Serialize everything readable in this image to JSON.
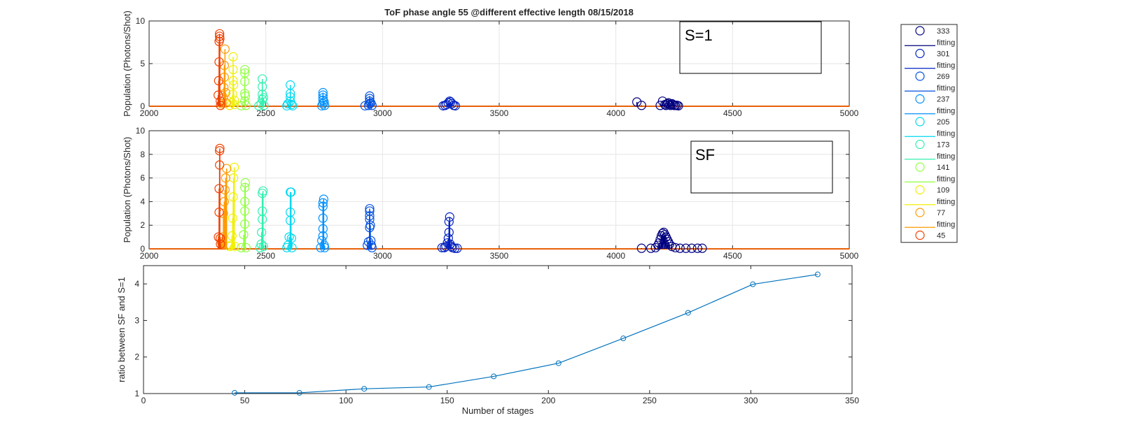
{
  "title": "ToF phase angle 55 @different effective length      08/15/2018",
  "chart_data": [
    {
      "type": "scatter",
      "style": "stem",
      "ylabel": "Population (Photons/Shot)",
      "xlim": [
        2000,
        5000
      ],
      "ylim": [
        0,
        10
      ],
      "xticks": [
        2000,
        2500,
        3000,
        3500,
        4000,
        4500,
        5000
      ],
      "yticks": [
        0,
        5,
        10
      ],
      "annotation": "S=1",
      "grid": true,
      "series": [
        {
          "name": "333",
          "color": "#00007f",
          "x": [
            4090,
            4110,
            4190,
            4200,
            4210,
            4215,
            4220,
            4225,
            4230,
            4235,
            4240,
            4245,
            4250,
            4255,
            4262,
            4268
          ],
          "y": [
            0.5,
            0.1,
            0.1,
            0.6,
            0.2,
            0.1,
            0.3,
            0.4,
            0.2,
            0.1,
            0.3,
            0.2,
            0.1,
            0.1,
            0.1,
            0.05
          ]
        },
        {
          "name": "301",
          "color": "#0020c0",
          "x": [
            3260,
            3268,
            3275,
            3282,
            3288,
            3292,
            3298,
            3305,
            3312
          ],
          "y": [
            0.05,
            0.1,
            0.2,
            0.4,
            0.6,
            0.5,
            0.3,
            0.1,
            0.05
          ]
        },
        {
          "name": "269",
          "color": "#0050e0",
          "x": [
            2925,
            2940,
            2945,
            2945,
            2945,
            2945,
            2950,
            2955
          ],
          "y": [
            0.05,
            0.1,
            0.3,
            0.6,
            0.9,
            1.2,
            0.4,
            0.1
          ]
        },
        {
          "name": "237",
          "color": "#0090ff",
          "x": [
            2740,
            2745,
            2745,
            2745,
            2745,
            2745,
            2750,
            2752
          ],
          "y": [
            0.05,
            0.3,
            0.7,
            1.0,
            1.3,
            1.6,
            0.5,
            0.1
          ]
        },
        {
          "name": "205",
          "color": "#00d8f0",
          "x": [
            2590,
            2595,
            2605,
            2605,
            2605,
            2605,
            2610,
            2615
          ],
          "y": [
            0.05,
            0.3,
            0.6,
            1.1,
            1.5,
            2.5,
            0.2,
            0.05
          ]
        },
        {
          "name": "173",
          "color": "#30f0b0",
          "x": [
            2470,
            2480,
            2485,
            2485,
            2485,
            2485,
            2490,
            2492
          ],
          "y": [
            0.05,
            0.3,
            0.8,
            1.4,
            2.3,
            3.2,
            1.0,
            0.1
          ]
        },
        {
          "name": "141",
          "color": "#90ff40",
          "x": [
            2395,
            2410,
            2410,
            2410,
            2410,
            2410,
            2412,
            2415
          ],
          "y": [
            0.05,
            0.6,
            1.5,
            2.9,
            3.9,
            4.3,
            1.2,
            0.1
          ]
        },
        {
          "name": "109",
          "color": "#f0f000",
          "x": [
            2345,
            2355,
            2358,
            2360,
            2360,
            2360,
            2362,
            2365,
            2365
          ],
          "y": [
            0.1,
            0.4,
            1.4,
            3.0,
            4.3,
            5.8,
            2.5,
            0.7,
            0.2
          ]
        },
        {
          "name": "77",
          "color": "#ff9a00",
          "x": [
            2310,
            2318,
            2320,
            2322,
            2322,
            2325,
            2328,
            2330
          ],
          "y": [
            0.3,
            1.0,
            2.2,
            3.4,
            4.8,
            6.7,
            1.6,
            0.4
          ]
        },
        {
          "name": "45",
          "color": "#f04000",
          "x": [
            2296,
            2298,
            2300,
            2300,
            2302,
            2302,
            2303,
            2305,
            2306
          ],
          "y": [
            1.3,
            3.0,
            5.2,
            7.6,
            8.2,
            8.5,
            7.9,
            0.6,
            0.1
          ]
        }
      ]
    },
    {
      "type": "scatter",
      "style": "stem",
      "ylabel": "Population (Photons/Shot)",
      "xlim": [
        2000,
        5000
      ],
      "ylim": [
        0,
        10
      ],
      "xticks": [
        2000,
        2500,
        3000,
        3500,
        4000,
        4500,
        5000
      ],
      "yticks": [
        0,
        2,
        4,
        6,
        8,
        10
      ],
      "annotation": "SF",
      "grid": true,
      "series": [
        {
          "name": "333",
          "color": "#00007f",
          "x": [
            4110,
            4150,
            4170,
            4180,
            4185,
            4190,
            4195,
            4200,
            4205,
            4210,
            4215,
            4220,
            4225,
            4230,
            4240,
            4255,
            4275,
            4300,
            4325,
            4350,
            4370
          ],
          "y": [
            0.05,
            0.05,
            0.1,
            0.3,
            0.5,
            0.8,
            1.1,
            1.3,
            1.4,
            1.2,
            1.0,
            0.8,
            0.6,
            0.4,
            0.2,
            0.1,
            0.05,
            0.05,
            0.05,
            0.05,
            0.05
          ]
        },
        {
          "name": "301",
          "color": "#0020c0",
          "x": [
            3255,
            3265,
            3272,
            3278,
            3282,
            3285,
            3285,
            3288,
            3290,
            3295,
            3300,
            3310,
            3320
          ],
          "y": [
            0.1,
            0.1,
            0.2,
            0.5,
            0.9,
            1.4,
            2.3,
            2.7,
            0.4,
            0.2,
            0.1,
            0.05,
            0.05
          ]
        },
        {
          "name": "269",
          "color": "#0050e0",
          "x": [
            2935,
            2940,
            2945,
            2945,
            2945,
            2945,
            2945,
            2948,
            2950,
            2952,
            2955
          ],
          "y": [
            0.3,
            0.6,
            1.8,
            2.5,
            2.8,
            3.2,
            3.4,
            2.0,
            0.7,
            0.3,
            0.1
          ]
        },
        {
          "name": "237",
          "color": "#0090ff",
          "x": [
            2735,
            2740,
            2745,
            2745,
            2745,
            2745,
            2745,
            2748,
            2750,
            2752
          ],
          "y": [
            0.1,
            0.7,
            1.1,
            1.7,
            2.6,
            3.6,
            3.9,
            4.2,
            0.3,
            0.1
          ]
        },
        {
          "name": "205",
          "color": "#00d8f0",
          "x": [
            2590,
            2595,
            2600,
            2605,
            2605,
            2605,
            2608,
            2610,
            2612
          ],
          "y": [
            0.1,
            0.3,
            1.0,
            2.4,
            3.1,
            4.8,
            4.8,
            0.9,
            0.1
          ]
        },
        {
          "name": "173",
          "color": "#30f0b0",
          "x": [
            2475,
            2480,
            2482,
            2485,
            2485,
            2485,
            2488,
            2490
          ],
          "y": [
            0.1,
            0.4,
            1.4,
            2.5,
            3.2,
            4.7,
            4.9,
            0.2
          ]
        },
        {
          "name": "141",
          "color": "#90ff40",
          "x": [
            2395,
            2405,
            2410,
            2410,
            2410,
            2410,
            2412,
            2415
          ],
          "y": [
            0.1,
            1.2,
            2.1,
            3.2,
            4.0,
            5.2,
            5.6,
            0.1
          ]
        },
        {
          "name": "109",
          "color": "#f0f000",
          "x": [
            2345,
            2350,
            2355,
            2358,
            2360,
            2362,
            2365,
            2368
          ],
          "y": [
            0.2,
            0.3,
            1.1,
            2.6,
            4.4,
            6.0,
            6.9,
            0.2
          ]
        },
        {
          "name": "77",
          "color": "#ff9a00",
          "x": [
            2310,
            2315,
            2318,
            2322,
            2325,
            2328,
            2332
          ],
          "y": [
            0.6,
            1.0,
            3.0,
            4.0,
            5.0,
            6.0,
            6.8
          ]
        },
        {
          "name": "45",
          "color": "#f04000",
          "x": [
            2297,
            2300,
            2300,
            2302,
            2302,
            2303,
            2305,
            2306
          ],
          "y": [
            1.0,
            3.1,
            5.1,
            7.1,
            8.3,
            8.5,
            0.9,
            0.4
          ]
        }
      ],
      "legend": {
        "placement": "outside-right",
        "entries": [
          "333",
          "fitting",
          "301",
          "fitting",
          "269",
          "fitting",
          "237",
          "fitting",
          "205",
          "fitting",
          "173",
          "fitting",
          "141",
          "fitting",
          "109",
          "fitting",
          "77",
          "fitting",
          "45"
        ]
      }
    },
    {
      "type": "line",
      "xlabel": "Number of stages",
      "ylabel": "ratio between SF and S=1",
      "xlim": [
        0,
        350
      ],
      "ylim": [
        1,
        4.5
      ],
      "xticks": [
        0,
        50,
        100,
        150,
        200,
        250,
        300,
        350
      ],
      "yticks": [
        1,
        2,
        3,
        4
      ],
      "grid": false,
      "series": [
        {
          "color": "#0072bd",
          "x": [
            45,
            77,
            109,
            141,
            173,
            205,
            237,
            269,
            301,
            333
          ],
          "y": [
            1.02,
            1.02,
            1.13,
            1.18,
            1.47,
            1.83,
            2.51,
            3.21,
            3.99,
            4.26
          ]
        }
      ]
    }
  ]
}
